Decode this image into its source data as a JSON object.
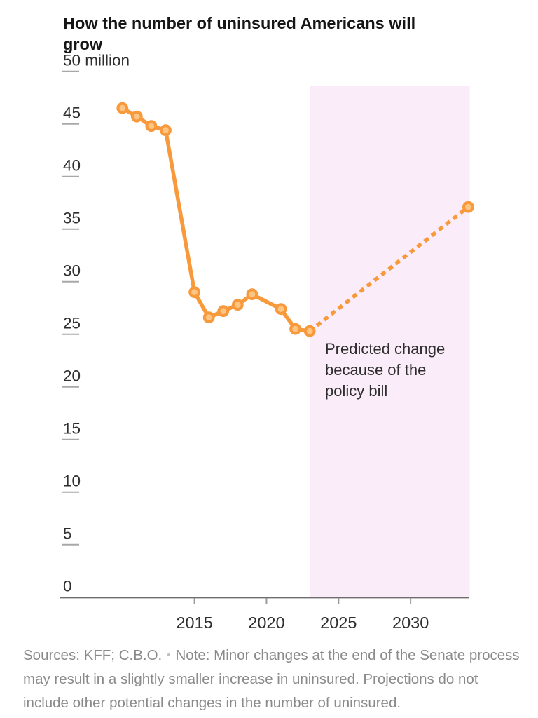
{
  "title": "How the number of uninsured Americans will grow",
  "chart_data": {
    "type": "line",
    "title": "How the number of uninsured Americans will grow",
    "y_axis": {
      "ticks": [
        0,
        5,
        10,
        15,
        20,
        25,
        30,
        35,
        40,
        45,
        50
      ],
      "top_tick": 50,
      "unit": "million",
      "range": [
        0,
        50
      ]
    },
    "x_axis": {
      "ticks": [
        2015,
        2020,
        2025,
        2030
      ],
      "range": [
        2010,
        2034
      ]
    },
    "series": [
      {
        "name": "observed",
        "style": "solid",
        "points": [
          [
            2010,
            46.5
          ],
          [
            2011,
            45.7
          ],
          [
            2012,
            44.8
          ],
          [
            2013,
            44.4
          ],
          [
            2015,
            29.0
          ],
          [
            2016,
            26.6
          ],
          [
            2017,
            27.2
          ],
          [
            2018,
            27.8
          ],
          [
            2019,
            28.8
          ],
          [
            2021,
            27.4
          ],
          [
            2022,
            25.5
          ],
          [
            2023,
            25.3
          ]
        ]
      },
      {
        "name": "projected",
        "style": "dashed",
        "points": [
          [
            2023,
            25.3
          ],
          [
            2034,
            37.1
          ]
        ]
      }
    ],
    "highlight_region": {
      "from": 2023,
      "to": 2034.1
    },
    "annotation": {
      "lines": [
        "Predicted change",
        "because of the",
        "policy bill"
      ]
    },
    "colors": {
      "line": "#f8993b",
      "marker_fill": "#fcc584",
      "region": "#faecf8",
      "axis_line": "#6e6e6e",
      "tick": "#a8a8a8",
      "label": "#2e2e2e"
    }
  },
  "footer": {
    "sources": "Sources: KFF; C.B.O.",
    "separator": "•",
    "note": "Note: Minor changes at the end of the Senate process may result in a slightly smaller increase in uninsured. Projections do not include other potential changes in the number of uninsured."
  }
}
